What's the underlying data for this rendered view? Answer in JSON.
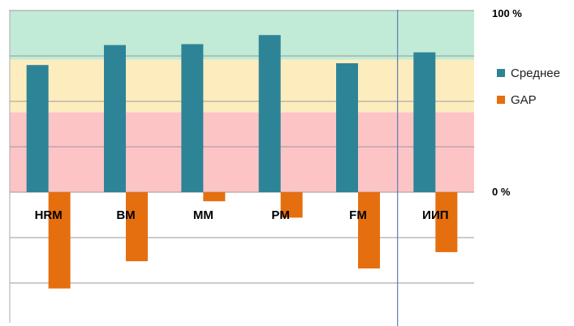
{
  "chart_data": {
    "type": "bar",
    "categories": [
      "HRM",
      "BM",
      "MM",
      "PM",
      "FM",
      "ИИП"
    ],
    "series": [
      {
        "name": "Среднее",
        "values": [
          70,
          81,
          81.5,
          86.5,
          71,
          77
        ]
      },
      {
        "name": "GAP",
        "values": [
          -53,
          -38,
          -5,
          -14,
          -42,
          -33
        ]
      }
    ],
    "ylim": [
      -75,
      100
    ],
    "y_tick_labels": [
      "100 %",
      "0 %"
    ],
    "bands": [
      {
        "from": 0,
        "to": 44,
        "color": "#fdc4c6"
      },
      {
        "from": 44,
        "to": 73,
        "color": "#fdedbe"
      },
      {
        "from": 73,
        "to": 100,
        "color": "#c1ebd6"
      }
    ],
    "separator_after_category": "FM",
    "grid": true,
    "legend_position": "right",
    "colors": {
      "Среднее": "#2e8497",
      "GAP": "#e56f0f"
    }
  }
}
